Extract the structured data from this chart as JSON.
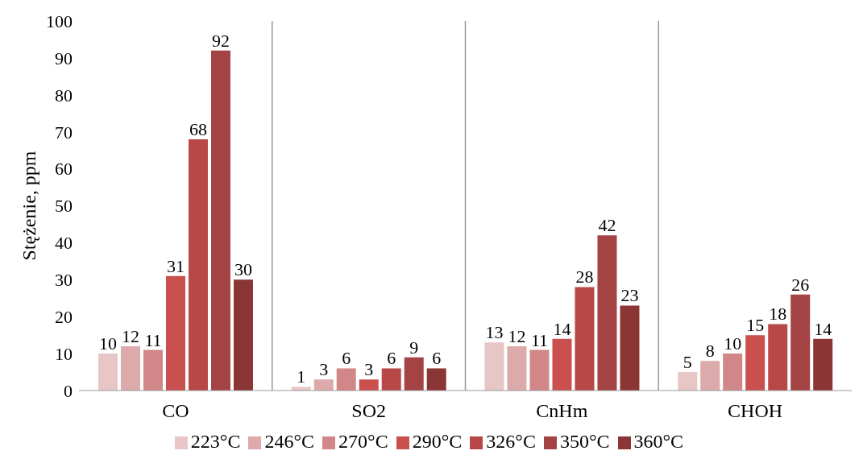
{
  "chart_data": {
    "type": "bar",
    "ylabel": "Stężenie, ppm",
    "categories": [
      "CO",
      "SO2",
      "CnHm",
      "CHOH"
    ],
    "series": [
      {
        "name": "223°C",
        "color": "#e8c6c6",
        "values": [
          10,
          1,
          13,
          5
        ]
      },
      {
        "name": "246°C",
        "color": "#dcaaaa",
        "values": [
          12,
          3,
          12,
          8
        ]
      },
      {
        "name": "270°C",
        "color": "#d18787",
        "values": [
          11,
          6,
          11,
          10
        ]
      },
      {
        "name": "290°C",
        "color": "#c9504f",
        "values": [
          31,
          3,
          14,
          15
        ]
      },
      {
        "name": "326°C",
        "color": "#b84848",
        "values": [
          68,
          6,
          28,
          18
        ]
      },
      {
        "name": "350°C",
        "color": "#a34343",
        "values": [
          92,
          9,
          42,
          26
        ]
      },
      {
        "name": "360°C",
        "color": "#8b3535",
        "values": [
          30,
          6,
          23,
          14
        ]
      }
    ],
    "ylim": [
      0,
      100
    ],
    "yticks": [
      0,
      10,
      20,
      30,
      40,
      50,
      60,
      70,
      80,
      90,
      100
    ],
    "grid": "x",
    "legend": "bottom",
    "data_labels": true
  }
}
